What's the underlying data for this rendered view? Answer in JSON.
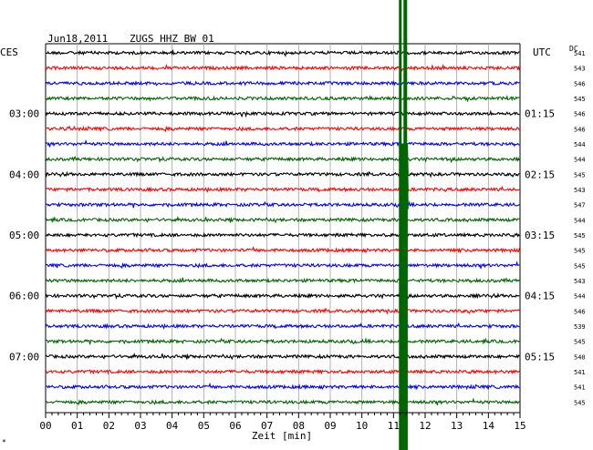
{
  "header": {
    "date": "Jun18,2011",
    "station": "ZUGS HHZ BW 01",
    "left_tz": "CES",
    "right_tz": "UTC",
    "dc_label": "DC"
  },
  "footer": {
    "corner_mark": "*"
  },
  "chart_data": {
    "type": "line",
    "title": "Jun18,2011  ZUGS HHZ BW 01",
    "xlabel": "Zeit [min]",
    "x_ticks": [
      "00",
      "01",
      "02",
      "03",
      "04",
      "05",
      "06",
      "07",
      "08",
      "09",
      "10",
      "11",
      "12",
      "13",
      "14",
      "15"
    ],
    "xlim": [
      0,
      15
    ],
    "minor_tick_step_min": 0.2,
    "grid": true,
    "trace_colors": [
      "#000000",
      "#ff0000",
      "#0000ff",
      "#006600"
    ],
    "left_time_labels": [
      {
        "row": 4,
        "text": "03:00"
      },
      {
        "row": 8,
        "text": "04:00"
      },
      {
        "row": 12,
        "text": "05:00"
      },
      {
        "row": 16,
        "text": "06:00"
      },
      {
        "row": 20,
        "text": "07:00"
      }
    ],
    "right_time_labels": [
      {
        "row": 4,
        "text": "01:15"
      },
      {
        "row": 8,
        "text": "02:15"
      },
      {
        "row": 12,
        "text": "03:15"
      },
      {
        "row": 16,
        "text": "04:15"
      },
      {
        "row": 20,
        "text": "05:15"
      }
    ],
    "dc_values": [
      "541",
      "543",
      "546",
      "545",
      "546",
      "546",
      "544",
      "544",
      "545",
      "543",
      "547",
      "544",
      "545",
      "545",
      "545",
      "543",
      "544",
      "546",
      "539",
      "545",
      "540",
      "541",
      "541",
      "545"
    ],
    "event": {
      "minute_start": 11.2,
      "minute_end": 11.45,
      "first_row": 1,
      "color": "#006600",
      "note": "large-amplitude signal saturating the drum"
    }
  }
}
